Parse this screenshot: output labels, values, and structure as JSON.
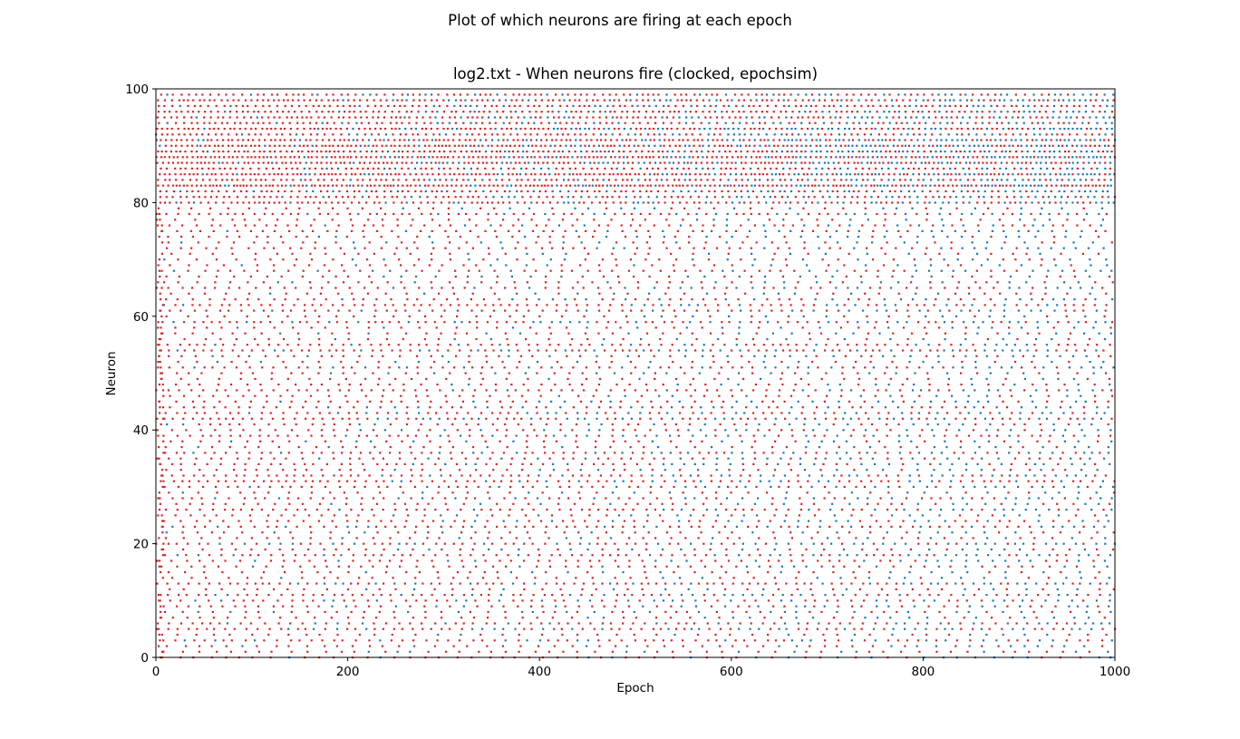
{
  "figure": {
    "suptitle": "Plot of which neurons are firing at each epoch"
  },
  "chart_data": {
    "type": "scatter",
    "title": "log2.txt - When neurons fire (clocked, epochsim)",
    "xlabel": "Epoch",
    "ylabel": "Neuron",
    "xlim": [
      0,
      1000
    ],
    "ylim": [
      0,
      100
    ],
    "xticks": [
      0,
      200,
      400,
      600,
      800,
      1000
    ],
    "yticks": [
      0,
      20,
      40,
      60,
      80,
      100
    ],
    "xtick_labels": [
      "0",
      "200",
      "400",
      "600",
      "800",
      "1000"
    ],
    "ytick_labels": [
      "0",
      "20",
      "40",
      "60",
      "80",
      "100"
    ],
    "grid": false,
    "legend": "none",
    "colors": {
      "marker_primary": "#d62728",
      "marker_secondary": "#1f77b4"
    },
    "series": [
      {
        "x_range": [
          0,
          1000
        ],
        "y_range": [
          0,
          99
        ],
        "points_sample": [
          [
            0,
            8
          ],
          [
            0,
            20
          ],
          [
            0,
            40
          ],
          [
            0,
            60
          ],
          [
            0,
            80
          ],
          [
            10,
            16
          ],
          [
            50,
            70
          ],
          [
            100,
            60
          ],
          [
            150,
            64
          ],
          [
            200,
            62
          ],
          [
            250,
            58
          ],
          [
            300,
            50
          ],
          [
            400,
            40
          ],
          [
            500,
            35
          ],
          [
            600,
            30
          ],
          [
            700,
            25
          ],
          [
            800,
            40
          ],
          [
            900,
            35
          ],
          [
            1000,
            45
          ]
        ]
      }
    ]
  }
}
